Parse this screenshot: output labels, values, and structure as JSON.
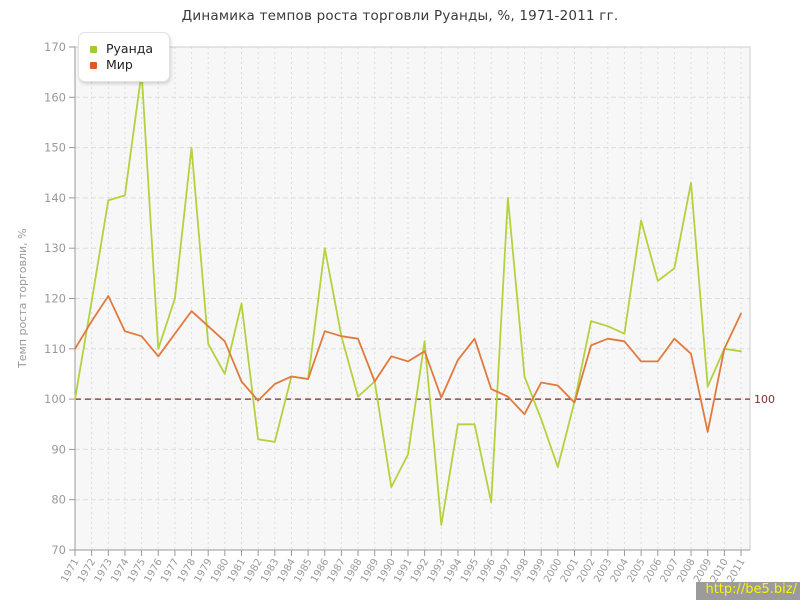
{
  "title": "Динамика темпов роста торговли Руанды, %, 1971-2011 гг.",
  "watermark": "http://be5.biz/",
  "chart_data": {
    "type": "line",
    "title": "Динамика темпов роста торговли Руанды, %, 1971-2011 гг.",
    "xlabel": "",
    "ylabel": "Темп роста торговли, %",
    "ylim": [
      70,
      170
    ],
    "ytick_step": 10,
    "grid": true,
    "legend_position": "top-left",
    "x": [
      1971,
      1972,
      1973,
      1974,
      1975,
      1976,
      1977,
      1978,
      1979,
      1980,
      1981,
      1982,
      1983,
      1984,
      1985,
      1986,
      1987,
      1988,
      1989,
      1990,
      1991,
      1992,
      1993,
      1994,
      1995,
      1996,
      1997,
      1998,
      1999,
      2000,
      2001,
      2002,
      2003,
      2004,
      2005,
      2006,
      2007,
      2008,
      2009,
      2010,
      2011
    ],
    "series": [
      {
        "name": "Руанда",
        "color": "#b3d23e",
        "swatch": "#a6c832",
        "values": [
          100,
          119.5,
          139.5,
          140.5,
          165,
          110,
          120,
          150,
          111,
          105,
          119,
          92,
          91.5,
          104.5,
          104,
          130,
          112.5,
          100.5,
          103.5,
          82.5,
          89,
          111.5,
          75,
          95,
          95,
          79.5,
          140,
          104.5,
          96,
          86.5,
          99.5,
          115.5,
          114.5,
          113,
          135.5,
          123.5,
          126,
          143,
          102.5,
          110,
          109.5
        ]
      },
      {
        "name": "Мир",
        "color": "#e07b3e",
        "swatch": "#db5b26",
        "values": [
          110,
          115.5,
          120.5,
          113.5,
          112.5,
          108.5,
          113,
          117.5,
          114.5,
          111.5,
          103.5,
          99.7,
          103,
          104.5,
          104,
          113.5,
          112.5,
          112,
          103.5,
          108.5,
          107.5,
          109.5,
          100.3,
          107.8,
          112,
          102,
          100.5,
          97,
          103.3,
          102.7,
          99.3,
          110.7,
          112,
          111.5,
          107.5,
          107.5,
          112,
          109,
          93.5,
          110,
          117
        ]
      }
    ],
    "reference_line": {
      "value": 100,
      "label": "100",
      "color": "#7d2e2e"
    },
    "colors": {
      "plot_bg": "#f7f7f7",
      "grid": "#dddddd",
      "frame": "#cccccc",
      "axis": "#999999",
      "tick_text": "#9a9a9a"
    }
  }
}
